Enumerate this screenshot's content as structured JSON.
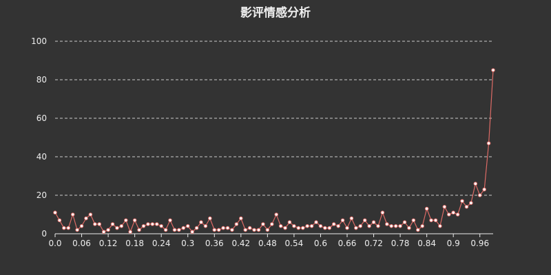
{
  "chart_data": {
    "type": "line",
    "title": "影评情感分析",
    "xlabel": "",
    "ylabel": "",
    "ylim": [
      0,
      100
    ],
    "yticks": [
      0,
      20,
      40,
      60,
      80,
      100
    ],
    "xticks": [
      "0.0",
      "0.06",
      "0.12",
      "0.18",
      "0.24",
      "0.3",
      "0.36",
      "0.42",
      "0.48",
      "0.54",
      "0.6",
      "0.66",
      "0.72",
      "0.78",
      "0.84",
      "0.9",
      "0.96"
    ],
    "grid": true,
    "legend": "none",
    "colors": {
      "background": "#333333",
      "line": "#dd6b66",
      "point_fill": "#ffffff",
      "text": "#eeeeee",
      "grid": "#cccccc"
    },
    "series": [
      {
        "x": [
          0.0,
          0.01,
          0.02,
          0.03,
          0.04,
          0.05,
          0.06,
          0.07,
          0.08,
          0.09,
          0.1,
          0.11,
          0.12,
          0.13,
          0.14,
          0.15,
          0.16,
          0.17,
          0.18,
          0.19,
          0.2,
          0.21,
          0.22,
          0.23,
          0.24,
          0.25,
          0.26,
          0.27,
          0.28,
          0.29,
          0.3,
          0.31,
          0.32,
          0.33,
          0.34,
          0.35,
          0.36,
          0.37,
          0.38,
          0.39,
          0.4,
          0.41,
          0.42,
          0.43,
          0.44,
          0.45,
          0.46,
          0.47,
          0.48,
          0.49,
          0.5,
          0.51,
          0.52,
          0.53,
          0.54,
          0.55,
          0.56,
          0.57,
          0.58,
          0.59,
          0.6,
          0.61,
          0.62,
          0.63,
          0.64,
          0.65,
          0.66,
          0.67,
          0.68,
          0.69,
          0.7,
          0.71,
          0.72,
          0.73,
          0.74,
          0.75,
          0.76,
          0.77,
          0.78,
          0.79,
          0.8,
          0.81,
          0.82,
          0.83,
          0.84,
          0.85,
          0.86,
          0.87,
          0.88,
          0.89,
          0.9,
          0.91,
          0.92,
          0.93,
          0.94,
          0.95,
          0.96,
          0.97,
          0.98,
          0.99
        ],
        "values": [
          11,
          7,
          3,
          3,
          10,
          2,
          4,
          8,
          10,
          5,
          5,
          1,
          2,
          5,
          3,
          4,
          7,
          1,
          7,
          2,
          4,
          5,
          5,
          5,
          4,
          2,
          7,
          2,
          2,
          3,
          4,
          1,
          3,
          6,
          4,
          8,
          2,
          2,
          3,
          3,
          2,
          5,
          8,
          2,
          3,
          2,
          2,
          5,
          2,
          5,
          10,
          4,
          3,
          6,
          4,
          3,
          3,
          4,
          4,
          6,
          4,
          3,
          3,
          5,
          4,
          7,
          3,
          8,
          3,
          4,
          7,
          4,
          6,
          4,
          11,
          5,
          4,
          4,
          4,
          6,
          3,
          7,
          2,
          4,
          13,
          7,
          7,
          4,
          14,
          10,
          11,
          10,
          17,
          14,
          16,
          26,
          20,
          23,
          47,
          85
        ]
      }
    ]
  }
}
